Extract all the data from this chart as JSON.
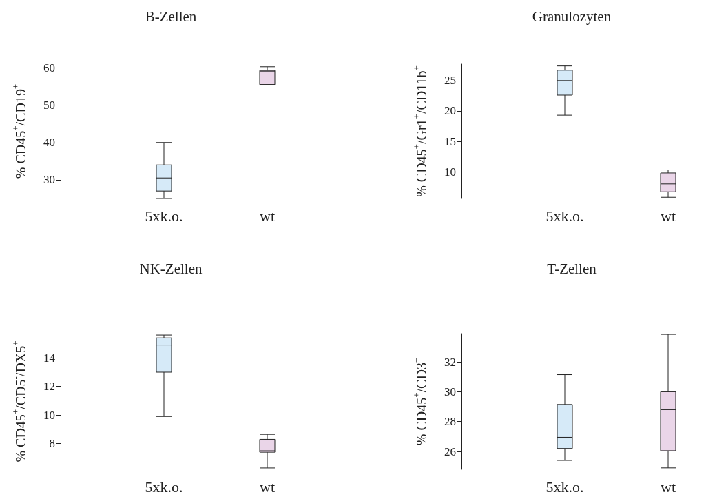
{
  "chart_data": [
    {
      "type": "box",
      "title": "B-Zellen",
      "ylabel": "% CD45$^{+}$/CD19$^{+}$",
      "categories": [
        "5xk.o.",
        "wt"
      ],
      "colors": [
        "#d6eaf8",
        "#ead5e8"
      ],
      "ylim": [
        25,
        61
      ],
      "yticks": [
        30,
        40,
        50,
        60
      ],
      "boxes": [
        {
          "low": 25,
          "q1": 27,
          "median": 30.5,
          "q3": 34,
          "high": 40
        },
        {
          "low": 55.5,
          "q1": 55.5,
          "median": 59,
          "q3": 59.3,
          "high": 60.3
        }
      ]
    },
    {
      "type": "box",
      "title": "Granulozyten",
      "ylabel": "% CD45$^{+}$/Gr1$^{+}$/CD11b$^{+}$",
      "categories": [
        "5xk.o.",
        "wt"
      ],
      "colors": [
        "#d6eaf8",
        "#ead5e8"
      ],
      "ylim": [
        5.6,
        27.7
      ],
      "yticks": [
        10,
        15,
        20,
        25
      ],
      "boxes": [
        {
          "low": 19.3,
          "q1": 22.6,
          "median": 25,
          "q3": 26.7,
          "high": 27.4
        },
        {
          "low": 5.8,
          "q1": 6.7,
          "median": 8,
          "q3": 9.8,
          "high": 10.3
        }
      ]
    },
    {
      "type": "box",
      "title": "NK-Zellen",
      "ylabel": "% CD45$^{+}$/CD5$^{-}$/DX5$^{+}$",
      "categories": [
        "5xk.o.",
        "wt"
      ],
      "colors": [
        "#d6eaf8",
        "#ead5e8"
      ],
      "ylim": [
        6.2,
        15.7
      ],
      "yticks": [
        8,
        10,
        12,
        14
      ],
      "boxes": [
        {
          "low": 9.9,
          "q1": 13,
          "median": 14.9,
          "q3": 15.4,
          "high": 15.6
        },
        {
          "low": 6.3,
          "q1": 7.4,
          "median": 7.5,
          "q3": 8.3,
          "high": 8.65
        }
      ]
    },
    {
      "type": "box",
      "title": "T-Zellen",
      "ylabel": "% CD45$^{+}$/CD3$^{+}$",
      "categories": [
        "5xk.o.",
        "wt"
      ],
      "colors": [
        "#d6eaf8",
        "#ead5e8"
      ],
      "ylim": [
        24.8,
        33.9
      ],
      "yticks": [
        26,
        28,
        30,
        32
      ],
      "boxes": [
        {
          "low": 25.4,
          "q1": 26.2,
          "median": 26.95,
          "q3": 29.15,
          "high": 31.15
        },
        {
          "low": 24.9,
          "q1": 26.05,
          "median": 28.8,
          "q3": 30,
          "high": 33.85
        }
      ]
    }
  ]
}
